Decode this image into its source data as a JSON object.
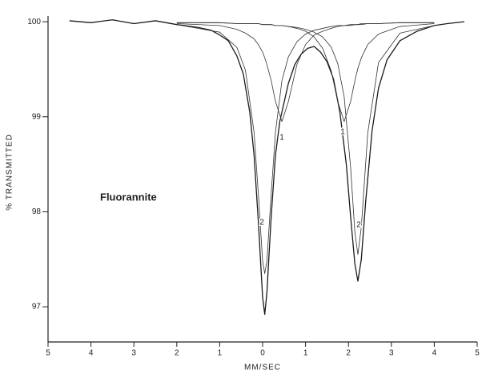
{
  "chart_data": {
    "type": "line",
    "xlabel": "MM/SEC",
    "ylabel": "% TRANSMITTED",
    "xlim": [
      -5,
      5
    ],
    "ylim": [
      96.63,
      100.06
    ],
    "xticks": [
      {
        "value": -5,
        "label": "5"
      },
      {
        "value": -4,
        "label": "4"
      },
      {
        "value": -3,
        "label": "3"
      },
      {
        "value": -2,
        "label": "2"
      },
      {
        "value": -1,
        "label": "1"
      },
      0,
      1,
      2,
      3,
      4,
      5
    ],
    "yticks": [
      97,
      98,
      99,
      100
    ],
    "annotations": [
      {
        "text": "Fluorannite"
      },
      {
        "text": "1"
      },
      {
        "text": "1"
      },
      {
        "text": "2"
      },
      {
        "text": "2"
      }
    ],
    "series": [
      {
        "color": "#1a1a1a",
        "x": [
          -4.5,
          -4,
          -3.5,
          -3,
          -2.5,
          -2,
          -1.5,
          -1.2,
          -1,
          -0.8,
          -0.6,
          -0.45,
          -0.3,
          -0.2,
          -0.1,
          0,
          0.05,
          0.1,
          0.2,
          0.3,
          0.4,
          0.5,
          0.6,
          0.75,
          0.9,
          1.05,
          1.2,
          1.35,
          1.5,
          1.65,
          1.8,
          1.95,
          2.05,
          2.15,
          2.22,
          2.3,
          2.4,
          2.55,
          2.7,
          2.9,
          3.2,
          3.6,
          4,
          4.3,
          4.7
        ],
        "values": [
          100.01,
          99.99,
          100.02,
          99.98,
          100.01,
          99.97,
          99.94,
          99.91,
          99.86,
          99.8,
          99.64,
          99.45,
          99.05,
          98.6,
          97.9,
          97.1,
          96.92,
          97.15,
          97.95,
          98.6,
          98.95,
          99.15,
          99.35,
          99.55,
          99.66,
          99.72,
          99.74,
          99.68,
          99.58,
          99.4,
          99.05,
          98.5,
          97.95,
          97.45,
          97.27,
          97.5,
          98.1,
          98.85,
          99.3,
          99.6,
          99.8,
          99.9,
          99.96,
          99.98,
          100.0
        ]
      },
      {
        "color": "#333333",
        "x": [
          -2,
          -1,
          -0.6,
          -0.4,
          -0.2,
          -0.1,
          0,
          0.05,
          0.1,
          0.2,
          0.3,
          0.45,
          0.6,
          0.8,
          1.0,
          1.2,
          1.4,
          1.6,
          1.75,
          1.9,
          2.05,
          2.15,
          2.22,
          2.3,
          2.45,
          2.7,
          3.2,
          4
        ],
        "values": [
          99.97,
          99.89,
          99.73,
          99.49,
          98.84,
          98.19,
          97.48,
          97.35,
          97.48,
          98.19,
          98.84,
          99.38,
          99.63,
          99.79,
          99.87,
          99.91,
          99.93,
          99.95,
          99.96,
          99.96,
          99.97,
          99.97,
          99.97,
          99.98,
          99.98,
          99.98,
          99.99,
          99.99
        ]
      },
      {
        "color": "#333333",
        "x": [
          -2,
          -1,
          -0.6,
          -0.4,
          -0.2,
          -0.1,
          0,
          0.05,
          0.1,
          0.2,
          0.3,
          0.45,
          0.6,
          0.8,
          1.0,
          1.2,
          1.4,
          1.6,
          1.75,
          1.9,
          2.05,
          2.15,
          2.22,
          2.3,
          2.45,
          2.7,
          3.2,
          4
        ],
        "values": [
          99.99,
          99.99,
          99.98,
          99.98,
          99.98,
          99.98,
          99.97,
          99.97,
          99.97,
          99.97,
          99.96,
          99.96,
          99.95,
          99.94,
          99.92,
          99.89,
          99.84,
          99.73,
          99.56,
          99.21,
          98.47,
          97.78,
          97.55,
          97.84,
          98.83,
          99.57,
          99.88,
          99.96
        ]
      },
      {
        "color": "#333333",
        "x": [
          -2,
          -1,
          -0.6,
          -0.4,
          -0.2,
          -0.1,
          0,
          0.05,
          0.1,
          0.2,
          0.3,
          0.45,
          0.6,
          0.8,
          1.0,
          1.2,
          1.4,
          1.6,
          1.75,
          1.9,
          2.05,
          2.15,
          2.22,
          2.3,
          2.45,
          2.7,
          3.2,
          4
        ],
        "values": [
          99.98,
          99.96,
          99.92,
          99.88,
          99.82,
          99.76,
          99.68,
          99.62,
          99.55,
          99.38,
          99.16,
          98.95,
          99.16,
          99.55,
          99.76,
          99.86,
          99.9,
          99.93,
          99.95,
          99.96,
          99.96,
          99.97,
          99.97,
          99.97,
          99.98,
          99.98,
          99.99,
          99.99
        ]
      },
      {
        "color": "#333333",
        "x": [
          -2,
          -1,
          -0.6,
          -0.4,
          -0.2,
          -0.1,
          0,
          0.05,
          0.1,
          0.2,
          0.3,
          0.45,
          0.6,
          0.8,
          1.0,
          1.2,
          1.4,
          1.6,
          1.75,
          1.9,
          2.05,
          2.15,
          2.22,
          2.3,
          2.45,
          2.7,
          3.2,
          4
        ],
        "values": [
          99.99,
          99.99,
          99.98,
          99.98,
          99.98,
          99.98,
          99.97,
          99.97,
          99.97,
          99.97,
          99.96,
          99.96,
          99.95,
          99.93,
          99.9,
          99.84,
          99.72,
          99.48,
          99.16,
          98.95,
          99.16,
          99.38,
          99.51,
          99.62,
          99.76,
          99.87,
          99.95,
          99.98
        ]
      }
    ]
  }
}
